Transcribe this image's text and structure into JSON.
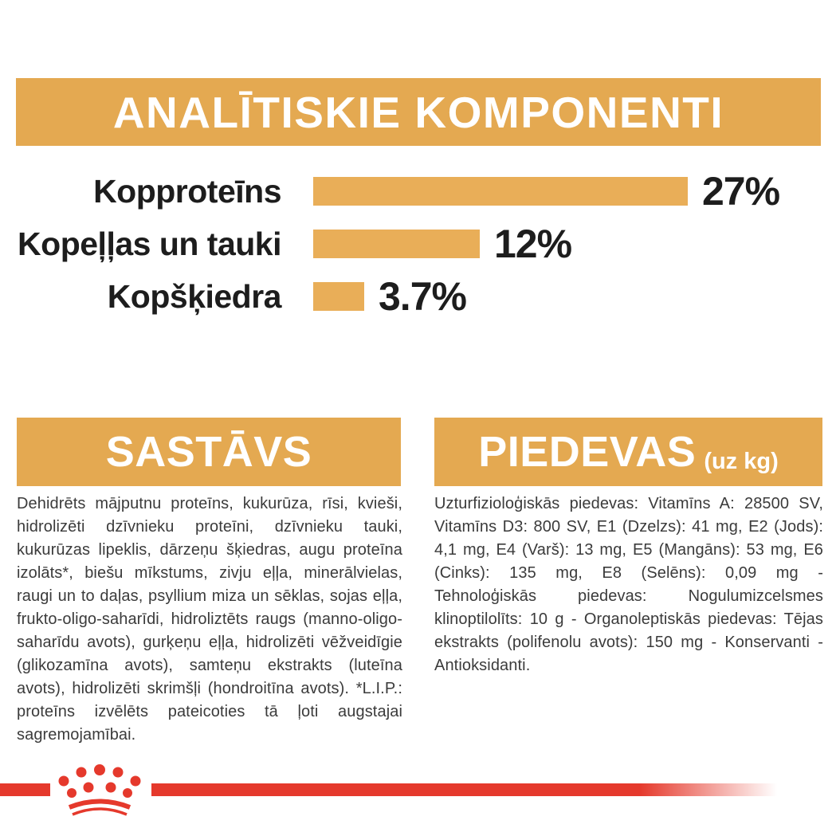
{
  "page": {
    "background": "#FFFFFF",
    "accent_gold": "#E4A951",
    "bar_gold": "#E9AE58",
    "brand_red": "#E5392C",
    "heading_text_color": "#FFFFFF",
    "label_ink": "#1D1D1D",
    "body_ink": "#3B3B3B"
  },
  "header": {
    "title": "ANALĪTISKIE KOMPONENTI"
  },
  "chart_data": {
    "type": "bar",
    "orientation": "horizontal",
    "title": "ANALĪTISKIE KOMPONENTI",
    "categories": [
      "Kopproteīns",
      "Kopeļļas un tauki",
      "Kopšķiedra"
    ],
    "values": [
      27,
      12,
      3.7
    ],
    "value_labels": [
      "27%",
      "12%",
      "3.7%"
    ],
    "unit": "%",
    "xlim": [
      0,
      27
    ],
    "bar_color": "#E9AE58",
    "grid": false,
    "legend": false,
    "value_label_position": "right-of-bar"
  },
  "sections": {
    "sastavs": {
      "title": "SASTĀVS",
      "body": "Dehidrēts mājputnu proteīns, kukurūza, rīsi, kvieši, hidrolizēti dzīvnieku proteīni, dzīvnieku tauki, kukurūzas lipeklis, dārzeņu šķiedras, augu proteīna izolāts*, biešu mīkstums, zivju eļļa, minerālvielas, raugi un to daļas, psyllium miza un sēklas, sojas eļļa, frukto-oligo-saharīdi, hidroliztēts raugs (manno-oligo-saharīdu avots), gurķeņu eļļa, hidrolizēti vēžveidīgie (glikozamīna avots), samteņu ekstrakts (luteīna avots), hidrolizēti skrimšļi (hondroitīna avots). *L.I.P.: proteīns izvēlēts pateicoties tā ļoti augstajai sagremojamībai."
    },
    "piedevas": {
      "title": "PIEDEVAS",
      "title_suffix": "(uz kg)",
      "body": "Uzturfizioloģiskās piedevas: Vitamīns A: 28500 SV, Vitamīns D3: 800 SV, E1 (Dzelzs): 41 mg, E2 (Jods): 4,1 mg, E4 (Varš): 13 mg, E5 (Mangāns): 53 mg, E6 (Cinks): 135 mg, E8 (Selēns): 0,09 mg - Tehnoloģiskās piedevas: Nogulumizcelsmes klinoptilolīts: 10 g - Organoleptiskās piedevas: Tējas ekstrakts (polifenolu avots): 150 mg - Konservanti - Antioksidanti."
    }
  },
  "footer": {
    "logo": "royal-canin-crown"
  }
}
